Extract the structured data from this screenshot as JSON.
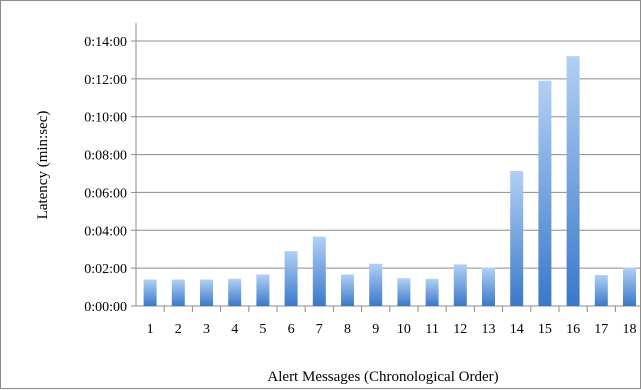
{
  "chart_data": {
    "type": "bar",
    "title": "",
    "xlabel": "Alert Messages (Chronological Order)",
    "ylabel": "Latency (min:sec)",
    "categories": [
      "1",
      "2",
      "3",
      "4",
      "5",
      "6",
      "7",
      "8",
      "9",
      "10",
      "11",
      "12",
      "13",
      "14",
      "15",
      "16",
      "17",
      "18"
    ],
    "values_seconds": [
      84,
      84,
      84,
      86,
      100,
      174,
      220,
      100,
      134,
      88,
      86,
      132,
      122,
      428,
      714,
      792,
      98,
      122
    ],
    "ylim_seconds": [
      0,
      840
    ],
    "yticks": [
      "0:00:00",
      "0:02:00",
      "0:04:00",
      "0:06:00",
      "0:08:00",
      "0:10:00",
      "0:12:00",
      "0:14:00"
    ],
    "grid": true,
    "legend": "none",
    "colors": {
      "bar_top": "#b2d0f4",
      "bar_bottom": "#3a78c9",
      "grid": "#8c8c8c",
      "frame": "#8c8c8c"
    }
  }
}
